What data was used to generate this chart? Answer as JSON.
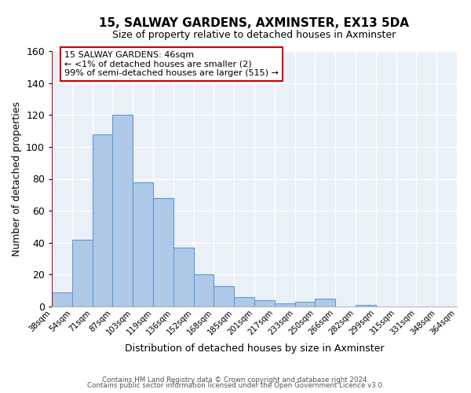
{
  "title": "15, SALWAY GARDENS, AXMINSTER, EX13 5DA",
  "subtitle": "Size of property relative to detached houses in Axminster",
  "xlabel": "Distribution of detached houses by size in Axminster",
  "ylabel": "Number of detached properties",
  "bar_values": [
    9,
    42,
    108,
    120,
    78,
    68,
    37,
    20,
    13,
    6,
    4,
    2,
    3,
    5,
    0,
    1
  ],
  "bin_labels": [
    "38sqm",
    "54sqm",
    "71sqm",
    "87sqm",
    "103sqm",
    "119sqm",
    "136sqm",
    "152sqm",
    "168sqm",
    "185sqm",
    "201sqm",
    "217sqm",
    "233sqm",
    "250sqm",
    "266sqm",
    "282sqm",
    "299sqm",
    "315sqm",
    "331sqm",
    "348sqm",
    "364sqm"
  ],
  "bar_color": "#aec8e8",
  "bar_edge_color": "#5b9bd5",
  "highlight_color": "#cc0000",
  "annotation_box_text": "15 SALWAY GARDENS: 46sqm\n← <1% of detached houses are smaller (2)\n99% of semi-detached houses are larger (515) →",
  "annotation_box_color": "#cc0000",
  "ylim": [
    0,
    160
  ],
  "yticks": [
    0,
    20,
    40,
    60,
    80,
    100,
    120,
    140,
    160
  ],
  "background_color": "#eaf0f8",
  "grid_color": "#ffffff",
  "footer_line1": "Contains HM Land Registry data © Crown copyright and database right 2024.",
  "footer_line2": "Contains public sector information licensed under the Open Government Licence v3.0."
}
